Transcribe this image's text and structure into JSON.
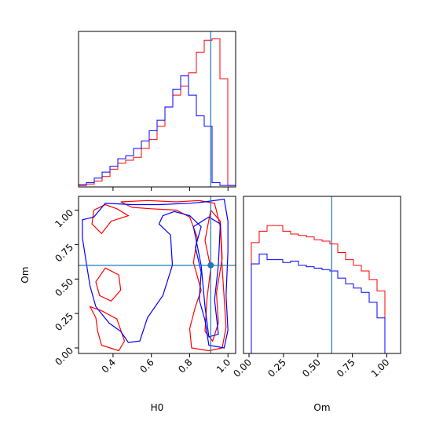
{
  "chart_data": {
    "type": "corner",
    "parameters": [
      "H0",
      "Om"
    ],
    "truths": {
      "H0": 0.91,
      "Om": 0.6
    },
    "truth_color": "#1f77b4",
    "colors": {
      "red_series": "#ff0000",
      "blue_series": "#0000ff"
    },
    "axes": {
      "H0": {
        "label": "H0",
        "range": [
          0.22,
          1.04
        ],
        "ticks": [
          0.4,
          0.6,
          0.8,
          1.0
        ],
        "tick_labels": [
          "0.4",
          "0.6",
          "0.8",
          "1.0"
        ]
      },
      "Om": {
        "label": "Om",
        "range": [
          -0.04,
          1.1
        ],
        "ticks": [
          0.0,
          0.25,
          0.5,
          0.75,
          1.0
        ],
        "tick_labels": [
          "0.00",
          "0.25",
          "0.50",
          "0.75",
          "1.00"
        ]
      }
    },
    "histograms": {
      "H0": {
        "bin_edges": [
          0.22,
          0.261,
          0.302,
          0.343,
          0.384,
          0.425,
          0.466,
          0.507,
          0.548,
          0.589,
          0.63,
          0.671,
          0.712,
          0.753,
          0.794,
          0.835,
          0.876,
          0.917,
          0.958,
          0.999,
          1.04
        ],
        "series": [
          {
            "color": "#ff0000",
            "counts": [
              0.01,
              0.02,
              0.04,
              0.07,
              0.12,
              0.16,
              0.18,
              0.2,
              0.26,
              0.32,
              0.41,
              0.54,
              0.62,
              0.68,
              0.77,
              0.91,
              0.99,
              1.0,
              0.73,
              0.01
            ]
          },
          {
            "color": "#0000ff",
            "counts": [
              0.015,
              0.03,
              0.06,
              0.1,
              0.14,
              0.19,
              0.21,
              0.26,
              0.31,
              0.38,
              0.45,
              0.54,
              0.66,
              0.75,
              0.62,
              0.48,
              0.41,
              0.03,
              0.01,
              0.01
            ]
          }
        ]
      },
      "Om": {
        "bin_edges": [
          -0.04,
          0.017,
          0.074,
          0.131,
          0.188,
          0.245,
          0.302,
          0.359,
          0.416,
          0.473,
          0.53,
          0.587,
          0.644,
          0.701,
          0.758,
          0.815,
          0.872,
          0.929,
          0.986,
          1.043,
          1.1
        ],
        "series": [
          {
            "color": "#ff0000",
            "counts": [
              0.0,
              0.78,
              0.86,
              0.9,
              0.9,
              0.86,
              0.84,
              0.83,
              0.82,
              0.8,
              0.79,
              0.77,
              0.71,
              0.66,
              0.62,
              0.58,
              0.52,
              0.44,
              0.0,
              0.0
            ]
          },
          {
            "color": "#0000ff",
            "counts": [
              0.0,
              0.63,
              0.7,
              0.66,
              0.66,
              0.64,
              0.65,
              0.62,
              0.61,
              0.6,
              0.59,
              0.58,
              0.53,
              0.49,
              0.46,
              0.43,
              0.36,
              0.25,
              0.0,
              0.0
            ]
          }
        ]
      }
    },
    "contours": {
      "x_param": "H0",
      "y_param": "Om",
      "series": [
        {
          "color": "#ff0000",
          "levels": [
            [
              [
                0.28,
                0.3
              ],
              [
                0.34,
                0.27
              ],
              [
                0.42,
                0.21
              ],
              [
                0.46,
                0.05
              ],
              [
                0.43,
                -0.02
              ],
              [
                0.34,
                0.02
              ],
              [
                0.32,
                0.12
              ],
              [
                0.31,
                0.22
              ],
              [
                0.28,
                0.3
              ]
            ],
            [
              [
                0.36,
                0.58
              ],
              [
                0.43,
                0.53
              ],
              [
                0.44,
                0.42
              ],
              [
                0.39,
                0.34
              ],
              [
                0.33,
                0.38
              ],
              [
                0.31,
                0.48
              ],
              [
                0.36,
                0.58
              ]
            ],
            [
              [
                0.34,
                0.83
              ],
              [
                0.39,
                0.92
              ],
              [
                0.48,
                0.96
              ],
              [
                0.42,
                1.01
              ],
              [
                0.36,
                1.04
              ],
              [
                0.3,
                1.0
              ],
              [
                0.29,
                0.9
              ],
              [
                0.34,
                0.83
              ]
            ],
            [
              [
                0.44,
                1.06
              ],
              [
                0.58,
                1.07
              ],
              [
                0.73,
                1.06
              ],
              [
                0.85,
                1.07
              ],
              [
                0.93,
                1.05
              ],
              [
                0.96,
                0.88
              ],
              [
                0.97,
                0.58
              ],
              [
                0.99,
                0.15
              ],
              [
                0.97,
                0.0
              ],
              [
                0.9,
                -0.02
              ],
              [
                0.81,
                0.0
              ],
              [
                0.8,
                0.14
              ],
              [
                0.83,
                0.3
              ],
              [
                0.86,
                0.42
              ],
              [
                0.82,
                0.62
              ],
              [
                0.84,
                0.8
              ],
              [
                0.8,
                0.95
              ],
              [
                0.73,
                1.0
              ],
              [
                0.6,
                1.01
              ],
              [
                0.5,
                1.02
              ],
              [
                0.44,
                1.06
              ]
            ],
            [
              [
                0.91,
                1.0
              ],
              [
                0.96,
                0.92
              ],
              [
                0.97,
                0.65
              ],
              [
                0.94,
                0.4
              ],
              [
                0.95,
                0.18
              ],
              [
                0.92,
                0.05
              ],
              [
                0.88,
                0.12
              ],
              [
                0.89,
                0.35
              ],
              [
                0.91,
                0.58
              ],
              [
                0.88,
                0.78
              ],
              [
                0.91,
                1.0
              ]
            ]
          ]
        },
        {
          "color": "#0000ff",
          "levels": [
            [
              [
                0.24,
                0.93
              ],
              [
                0.3,
                0.95
              ],
              [
                0.36,
                1.05
              ],
              [
                0.5,
                1.04
              ],
              [
                0.64,
                1.04
              ],
              [
                0.8,
                1.05
              ],
              [
                0.88,
                1.06
              ],
              [
                0.98,
                1.08
              ],
              [
                1.0,
                0.92
              ],
              [
                1.0,
                0.7
              ],
              [
                0.99,
                0.38
              ],
              [
                1.0,
                0.13
              ],
              [
                0.98,
                0.0
              ],
              [
                0.9,
                0.02
              ],
              [
                0.88,
                0.2
              ],
              [
                0.85,
                0.35
              ],
              [
                0.86,
                0.55
              ],
              [
                0.83,
                0.73
              ],
              [
                0.86,
                0.88
              ],
              [
                0.8,
                0.96
              ],
              [
                0.72,
                0.99
              ],
              [
                0.66,
                0.96
              ],
              [
                0.64,
                0.9
              ],
              [
                0.7,
                0.82
              ],
              [
                0.71,
                0.6
              ],
              [
                0.66,
                0.38
              ],
              [
                0.58,
                0.22
              ],
              [
                0.54,
                0.05
              ],
              [
                0.48,
                0.04
              ],
              [
                0.44,
                0.12
              ],
              [
                0.38,
                0.18
              ],
              [
                0.31,
                0.3
              ],
              [
                0.28,
                0.45
              ],
              [
                0.26,
                0.62
              ],
              [
                0.24,
                0.8
              ],
              [
                0.24,
                0.93
              ]
            ],
            [
              [
                0.82,
                0.88
              ],
              [
                0.9,
                0.95
              ],
              [
                0.96,
                0.9
              ],
              [
                0.95,
                0.6
              ],
              [
                0.93,
                0.35
              ],
              [
                0.95,
                0.1
              ],
              [
                0.9,
                0.08
              ],
              [
                0.88,
                0.3
              ],
              [
                0.86,
                0.6
              ],
              [
                0.82,
                0.88
              ]
            ]
          ]
        }
      ]
    }
  }
}
